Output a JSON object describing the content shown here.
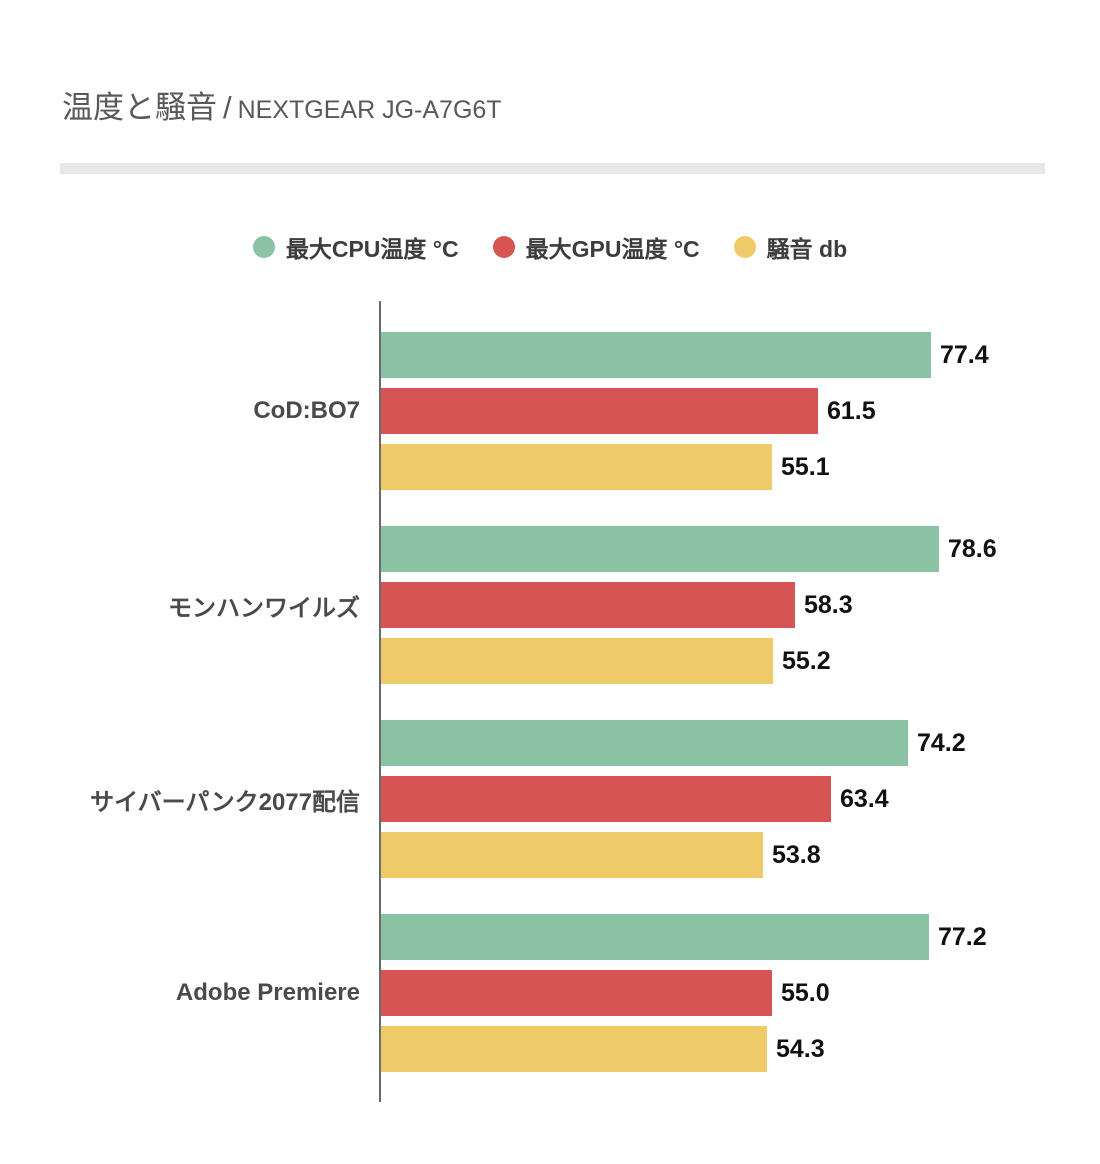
{
  "title": {
    "main": "温度と騒音",
    "separator": "/",
    "model": "NEXTGEAR JG-A7G6T"
  },
  "chart_data": {
    "type": "bar",
    "orientation": "horizontal",
    "title": "温度と騒音 / NEXTGEAR JG-A7G6T",
    "categories": [
      "CoD:BO7",
      "モンハンワイルズ",
      "サイバーパンク2077配信",
      "Adobe Premiere"
    ],
    "series": [
      {
        "name": "最大CPU温度 °C",
        "color": "#8cc2a4",
        "values": [
          77.4,
          78.6,
          74.2,
          77.2
        ]
      },
      {
        "name": "最大GPU温度 °C",
        "color": "#d65454",
        "values": [
          61.5,
          58.3,
          63.4,
          55.0
        ]
      },
      {
        "name": "騒音 db",
        "color": "#eeca68",
        "values": [
          55.1,
          55.2,
          53.8,
          54.3
        ]
      }
    ],
    "value_labels": true,
    "decimals": 1,
    "xlim": [
      0,
      100
    ],
    "grid": false,
    "legend_position": "top-center",
    "axis_color": "#6a6a6a"
  }
}
